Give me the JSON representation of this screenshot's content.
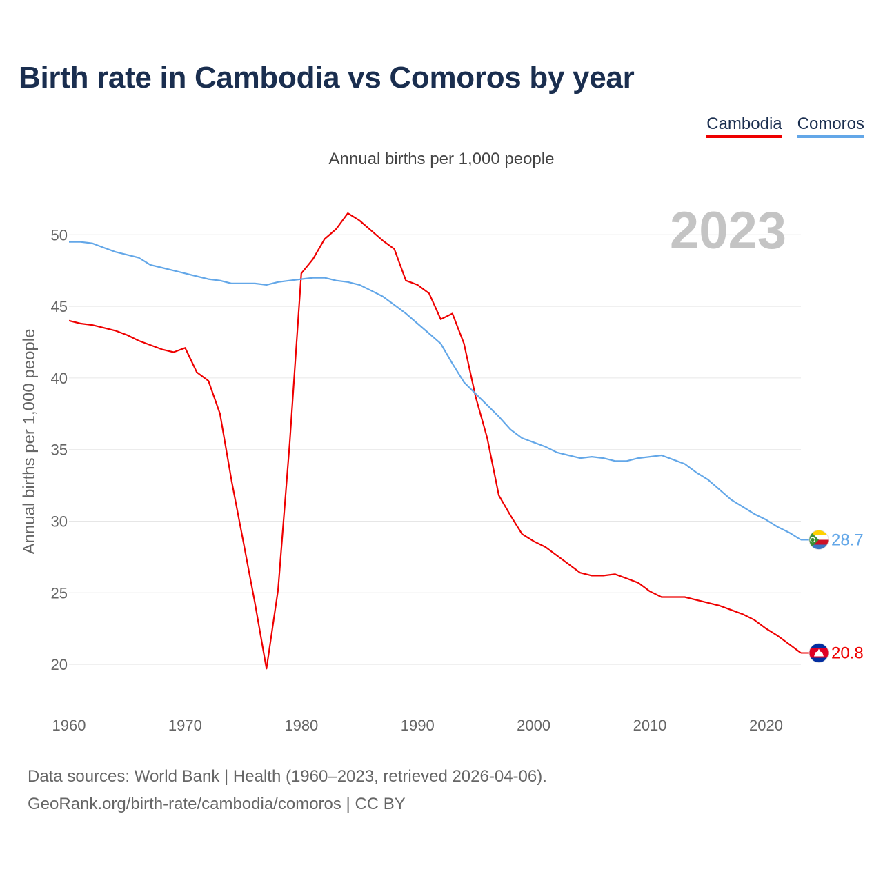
{
  "title": "Birth rate in Cambodia vs Comoros by year",
  "subtitle": "Annual births per 1,000 people",
  "legend": {
    "cambodia": "Cambodia",
    "comoros": "Comoros"
  },
  "year_label": "2023",
  "source": {
    "line1": "Data sources: World Bank | Health (1960–2023, retrieved 2026-04-06).",
    "line2": "GeoRank.org/birth-rate/cambodia/comoros | CC BY"
  },
  "chart_data": {
    "type": "line",
    "title": "Birth rate in Cambodia vs Comoros by year",
    "xlabel": "",
    "ylabel": "Annual births per 1,000 people",
    "xlim": [
      1960,
      2023
    ],
    "ylim": [
      17.5,
      53
    ],
    "x_ticks": [
      1960,
      1970,
      1980,
      1990,
      2000,
      2010,
      2020
    ],
    "y_ticks": [
      20,
      25,
      30,
      35,
      40,
      45,
      50
    ],
    "grid": true,
    "legend_position": "top-right",
    "x": [
      1960,
      1961,
      1962,
      1963,
      1964,
      1965,
      1966,
      1967,
      1968,
      1969,
      1970,
      1971,
      1972,
      1973,
      1974,
      1975,
      1976,
      1977,
      1978,
      1979,
      1980,
      1981,
      1982,
      1983,
      1984,
      1985,
      1986,
      1987,
      1988,
      1989,
      1990,
      1991,
      1992,
      1993,
      1994,
      1995,
      1996,
      1997,
      1998,
      1999,
      2000,
      2001,
      2002,
      2003,
      2004,
      2005,
      2006,
      2007,
      2008,
      2009,
      2010,
      2011,
      2012,
      2013,
      2014,
      2015,
      2016,
      2017,
      2018,
      2019,
      2020,
      2021,
      2022,
      2023
    ],
    "series": [
      {
        "name": "Cambodia",
        "color": "#ee0000",
        "end_label": "20.8",
        "values": [
          44.0,
          43.8,
          43.7,
          43.5,
          43.3,
          43.0,
          42.6,
          42.3,
          42.0,
          41.8,
          42.1,
          40.4,
          39.8,
          37.5,
          32.8,
          28.6,
          24.3,
          19.7,
          25.2,
          35.5,
          47.3,
          48.3,
          49.7,
          50.4,
          51.5,
          51.0,
          50.3,
          49.6,
          49.0,
          46.8,
          46.5,
          45.9,
          44.1,
          44.5,
          42.4,
          38.7,
          35.8,
          31.8,
          30.4,
          29.1,
          28.6,
          28.2,
          27.6,
          27.0,
          26.4,
          26.2,
          26.2,
          26.3,
          26.0,
          25.7,
          25.1,
          24.7,
          24.7,
          24.7,
          24.5,
          24.3,
          24.1,
          23.8,
          23.5,
          23.1,
          22.5,
          22.0,
          21.4,
          20.8
        ]
      },
      {
        "name": "Comoros",
        "color": "#63a7e8",
        "end_label": "28.7",
        "values": [
          49.5,
          49.5,
          49.4,
          49.1,
          48.8,
          48.6,
          48.4,
          47.9,
          47.7,
          47.5,
          47.3,
          47.1,
          46.9,
          46.8,
          46.6,
          46.6,
          46.6,
          46.5,
          46.7,
          46.8,
          46.9,
          47.0,
          47.0,
          46.8,
          46.7,
          46.5,
          46.1,
          45.7,
          45.1,
          44.5,
          43.8,
          43.1,
          42.4,
          41.0,
          39.7,
          38.9,
          38.1,
          37.3,
          36.4,
          35.8,
          35.5,
          35.2,
          34.8,
          34.6,
          34.4,
          34.5,
          34.4,
          34.2,
          34.2,
          34.4,
          34.5,
          34.6,
          34.3,
          34.0,
          33.4,
          32.9,
          32.2,
          31.5,
          31.0,
          30.5,
          30.1,
          29.6,
          29.2,
          28.7
        ]
      }
    ]
  }
}
